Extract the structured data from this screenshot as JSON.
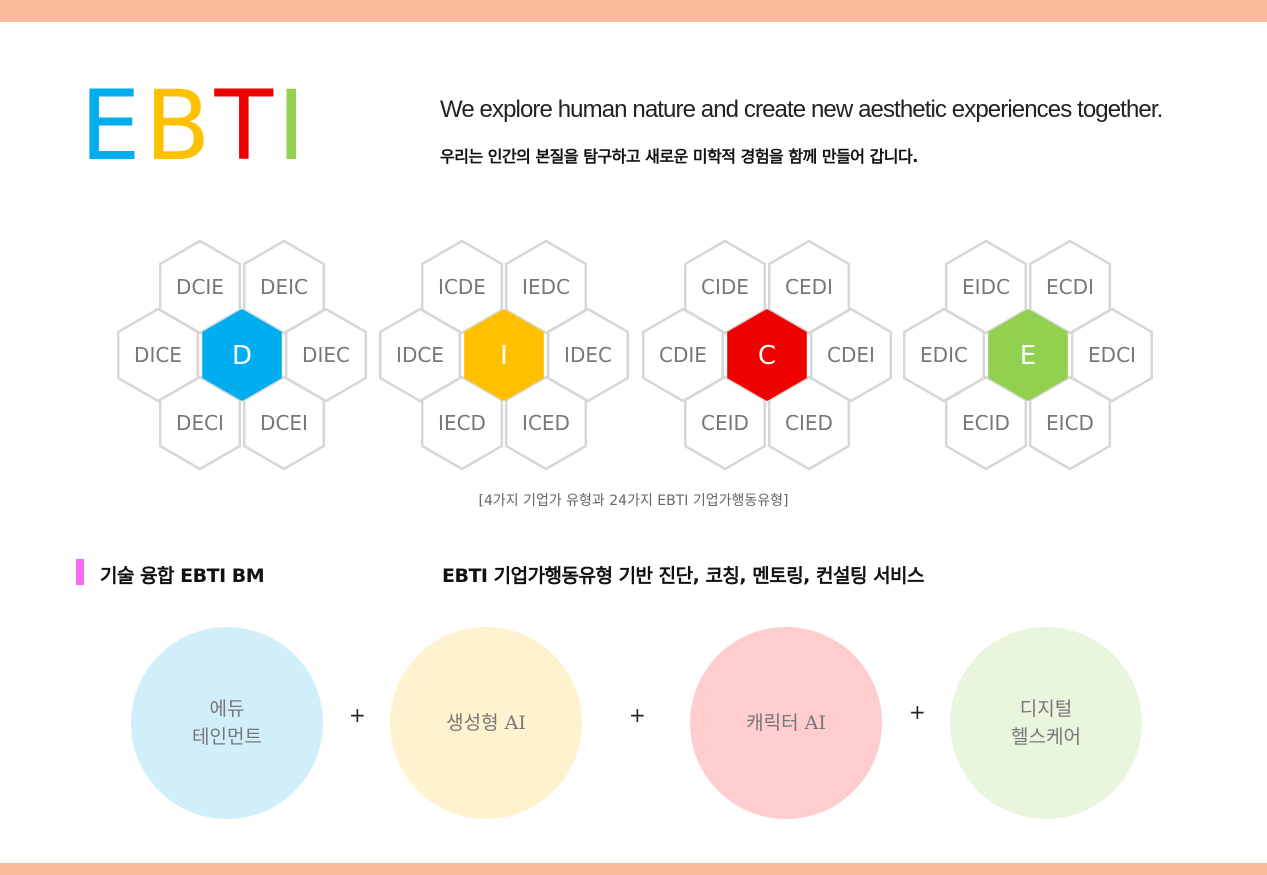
{
  "logo": {
    "letters": [
      {
        "char": "E",
        "color": "#00aeef"
      },
      {
        "char": "B",
        "color": "#ffc000"
      },
      {
        "char": "T",
        "color": "#f00000"
      },
      {
        "char": "I",
        "color": "#92d050"
      }
    ]
  },
  "tagline": {
    "english": "We explore human nature and create new aesthetic experiences together.",
    "korean": "우리는 인간의 본질을 탐구하고 새로운 미학적 경험을 함께 만들어 갑니다."
  },
  "clusters": [
    {
      "center": "D",
      "color": "#00aeef",
      "top": [
        "DCIE",
        "DEIC"
      ],
      "left": "DICE",
      "right": "DIEC",
      "bottom": [
        "DECI",
        "DCEI"
      ]
    },
    {
      "center": "I",
      "color": "#ffc000",
      "top": [
        "ICDE",
        "IEDC"
      ],
      "left": "IDCE",
      "right": "IDEC",
      "bottom": [
        "IECD",
        "ICED"
      ]
    },
    {
      "center": "C",
      "color": "#f00000",
      "top": [
        "CIDE",
        "CEDI"
      ],
      "left": "CDIE",
      "right": "CDEI",
      "bottom": [
        "CEID",
        "CIED"
      ]
    },
    {
      "center": "E",
      "color": "#92d050",
      "top": [
        "EIDC",
        "ECDI"
      ],
      "left": "EDIC",
      "right": "EDCI",
      "bottom": [
        "ECID",
        "EICD"
      ]
    }
  ],
  "caption": "[4가지 기업가 유형과 24가지 EBTI 기업가행동유형]",
  "bm": {
    "title": "기술 융합 EBTI BM",
    "description": "EBTI 기업가행동유형 기반 진단, 코칭, 멘토링, 컨설팅 서비스",
    "accent": "#f46cf2"
  },
  "circles": [
    {
      "label": "에듀\n테인먼트",
      "color": "#d0effa"
    },
    {
      "label": "생성형 AI",
      "color": "#fff2cf"
    },
    {
      "label": "캐릭터 AI",
      "color": "#ffcdcd"
    },
    {
      "label": "디지털\n헬스케어",
      "color": "#e9f5dd"
    }
  ],
  "plus_sign": "+"
}
